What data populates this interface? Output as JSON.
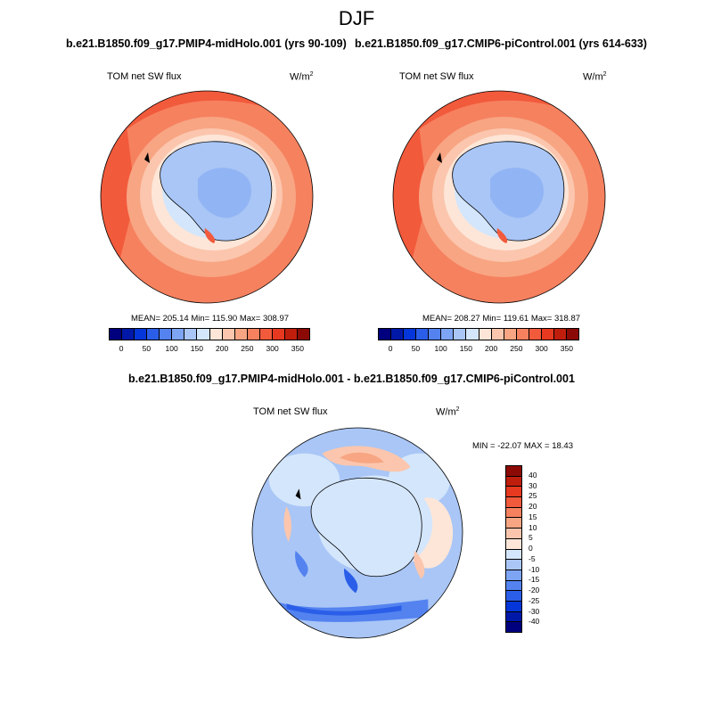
{
  "figure": {
    "title": "DJF"
  },
  "panels": [
    {
      "title": "b.e21.B1850.f09_g17.PMIP4-midHolo.001 (yrs 90-109)",
      "variable": "TOM net SW flux",
      "units": "W/m",
      "units_sup": "2",
      "stats": "MEAN= 205.14  Min= 115.90  Max= 308.97"
    },
    {
      "title": "b.e21.B1850.f09_g17.CMIP6-piControl.001 (yrs 614-633)",
      "variable": "TOM net SW flux",
      "units": "W/m",
      "units_sup": "2",
      "stats": "MEAN= 208.27  Min= 119.61  Max= 318.87"
    },
    {
      "title": "b.e21.B1850.f09_g17.PMIP4-midHolo.001 - b.e21.B1850.f09_g17.CMIP6-piControl.001",
      "variable": "TOM net SW flux",
      "units": "W/m",
      "units_sup": "2",
      "stats": "MIN = -22.07 MAX =  18.43"
    }
  ],
  "abs_colorbar": {
    "colors": [
      "#00007f",
      "#0018a8",
      "#0536d9",
      "#2b5ee8",
      "#5483f0",
      "#7ea5f3",
      "#a9c6f6",
      "#d4e6fb",
      "#fde6d8",
      "#fbc6ad",
      "#f8a583",
      "#f6815f",
      "#f25a3c",
      "#e6391f",
      "#c01e0d",
      "#8c0a05"
    ],
    "ticks": [
      "0",
      "50",
      "100",
      "150",
      "200",
      "250",
      "300",
      "350"
    ]
  },
  "diff_colorbar": {
    "colors": [
      "#8c0a05",
      "#c01e0d",
      "#e6391f",
      "#f25a3c",
      "#f6815f",
      "#f8a583",
      "#fbc6ad",
      "#fde6d8",
      "#d4e6fb",
      "#a9c6f6",
      "#7ea5f3",
      "#5483f0",
      "#2b5ee8",
      "#0536d9",
      "#0018a8",
      "#00007f"
    ],
    "ticks": [
      "40",
      "30",
      "25",
      "20",
      "15",
      "10",
      "5",
      "0",
      "-5",
      "-10",
      "-15",
      "-20",
      "-25",
      "-30",
      "-40"
    ]
  },
  "palette": {
    "ocean_outer": "#f25a3c",
    "ocean_mid": "#f6815f",
    "ocean_light": "#f8a583",
    "ice_edge": "#fde6d8",
    "ice": "#a9c6f6",
    "ice_light": "#d4e6fb",
    "diff_base": "#a9c6f6",
    "diff_light": "#d4e6fb",
    "diff_warm": "#fbc6ad"
  }
}
